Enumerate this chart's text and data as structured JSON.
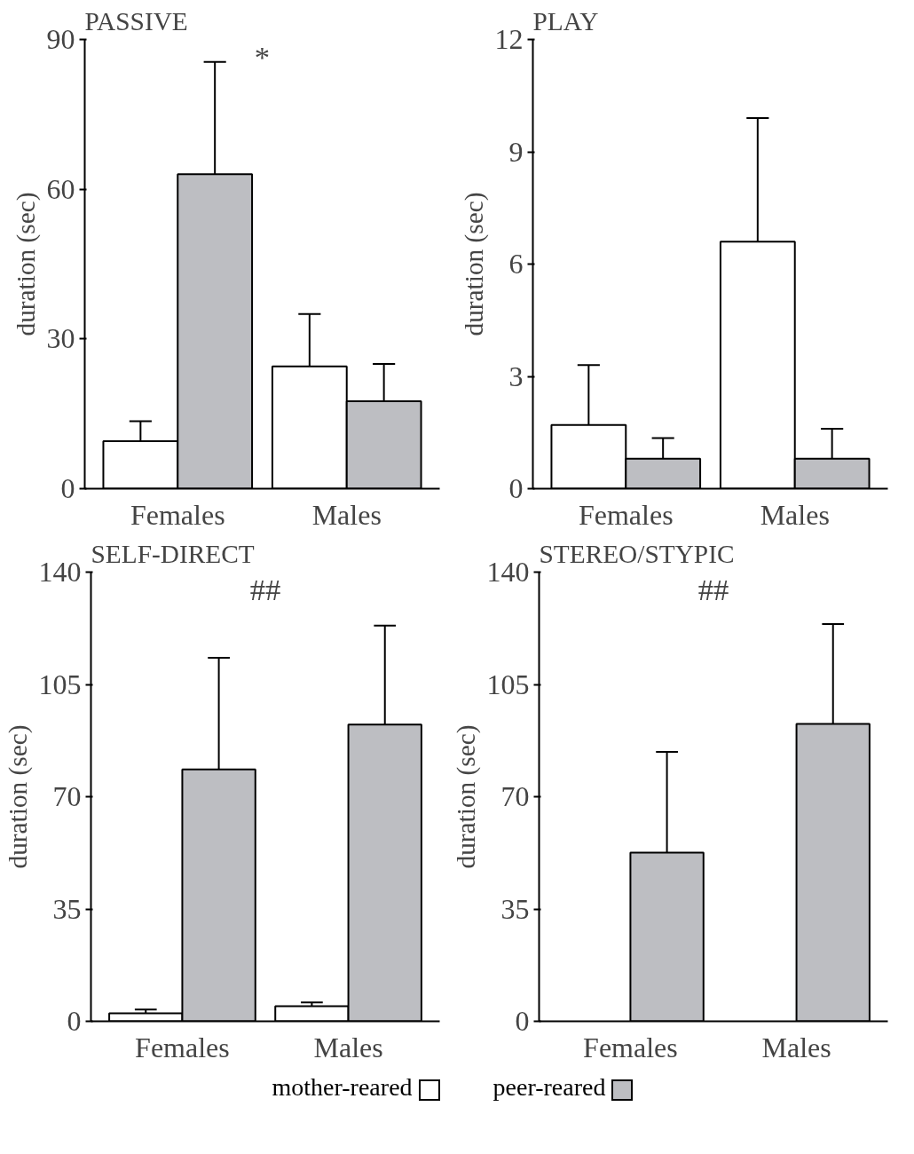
{
  "chart_data": [
    {
      "type": "bar",
      "title": "PASSIVE",
      "ylabel": "duration (sec)",
      "categories": [
        "Females",
        "Males"
      ],
      "ylim": [
        0,
        90
      ],
      "yticks": [
        0,
        30,
        60,
        90
      ],
      "grid": false,
      "annotations": [
        "*"
      ],
      "series": [
        {
          "color": "#ffffff",
          "values": [
            9.5,
            24.5
          ],
          "errors": [
            [
              9.5,
              13.5
            ],
            [
              24.5,
              35
            ]
          ]
        },
        {
          "color": "#bdbec2",
          "values": [
            63,
            17.5
          ],
          "errors": [
            [
              63,
              85.5
            ],
            [
              17.5,
              25
            ]
          ]
        }
      ]
    },
    {
      "type": "bar",
      "title": "PLAY",
      "ylabel": "duration (sec)",
      "categories": [
        "Females",
        "Males"
      ],
      "ylim": [
        0,
        12
      ],
      "yticks": [
        0,
        3,
        6,
        9,
        12
      ],
      "grid": false,
      "series": [
        {
          "color": "#ffffff",
          "values": [
            1.7,
            6.6
          ],
          "errors": [
            [
              1.7,
              3.3
            ],
            [
              6.6,
              9.9
            ]
          ]
        },
        {
          "color": "#bdbec2",
          "values": [
            0.8,
            0.8
          ],
          "errors": [
            [
              0.8,
              1.35
            ],
            [
              0.8,
              1.6
            ]
          ]
        }
      ]
    },
    {
      "type": "bar",
      "title": "SELF-DIRECT",
      "ylabel": "duration (sec)",
      "categories": [
        "Females",
        "Males"
      ],
      "ylim": [
        0,
        140
      ],
      "yticks": [
        0,
        35,
        70,
        105,
        140
      ],
      "grid": false,
      "annotations": [
        "##"
      ],
      "series": [
        {
          "color": "#ffffff",
          "values": [
            2.5,
            4.7
          ],
          "errors": [
            [
              2.5,
              3.7
            ],
            [
              4.7,
              5.9
            ]
          ]
        },
        {
          "color": "#bdbec2",
          "values": [
            78.5,
            92.5
          ],
          "errors": [
            [
              78.5,
              113.3
            ],
            [
              92.5,
              123.3
            ]
          ]
        }
      ]
    },
    {
      "type": "bar",
      "title": "STEREO/STYPIC",
      "ylabel": "duration (sec)",
      "categories": [
        "Females",
        "Males"
      ],
      "ylim": [
        0,
        140
      ],
      "yticks": [
        0,
        35,
        70,
        105,
        140
      ],
      "grid": false,
      "annotations": [
        "##"
      ],
      "legend": "bottom",
      "series": [
        {
          "name": "mother-reared",
          "color": "#ffffff",
          "values": [
            null,
            null
          ],
          "errors": [
            null,
            null
          ]
        },
        {
          "name": "peer-reared",
          "color": "#bdbec2",
          "values": [
            52.6,
            92.7
          ],
          "errors": [
            [
              52.6,
              84
            ],
            [
              92.7,
              123.8
            ]
          ]
        }
      ]
    }
  ]
}
